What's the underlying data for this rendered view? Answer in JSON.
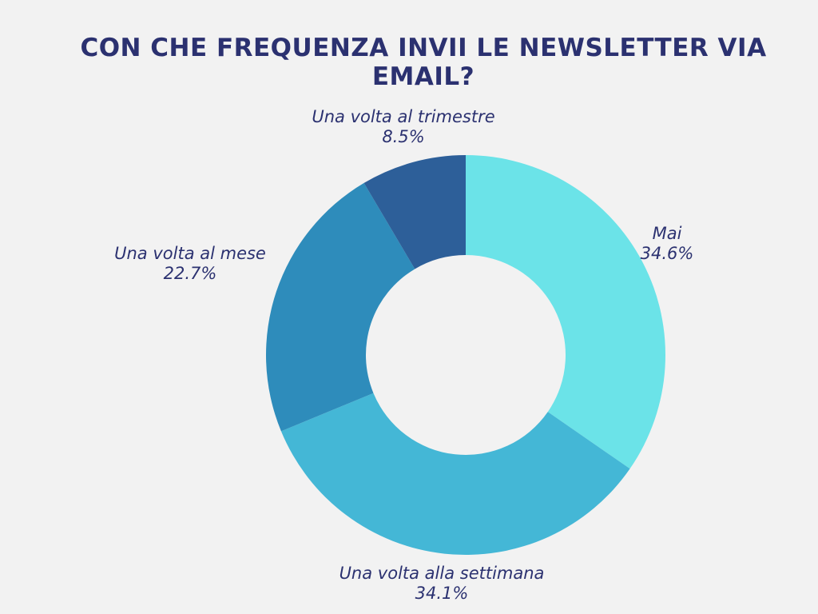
{
  "chart_data": {
    "type": "pie",
    "style": "donut",
    "title": "CON CHE FREQUENZA INVII LE NEWSLETTER VIA EMAIL?",
    "categories": [
      "Mai",
      "Una volta alla settimana",
      "Una volta al mese",
      "Una volta al trimestre"
    ],
    "values": [
      34.6,
      34.1,
      22.7,
      8.5
    ],
    "value_labels": [
      "34.6%",
      "34.1%",
      "22.7%",
      "8.5%"
    ],
    "colors": [
      "#6be3e8",
      "#44b7d6",
      "#2e8cbb",
      "#2d5f99"
    ],
    "start": "top, clockwise"
  }
}
